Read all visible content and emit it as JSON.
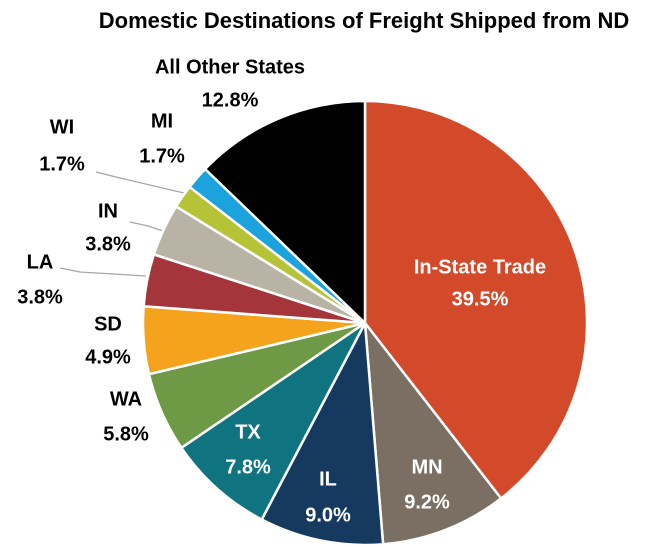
{
  "chart_data": {
    "type": "pie",
    "title": "Domestic Destinations of Freight Shipped from ND",
    "categories": [
      "In-State Trade",
      "MN",
      "IL",
      "TX",
      "WA",
      "SD",
      "LA",
      "IN",
      "WI",
      "MI",
      "All Other States"
    ],
    "values": [
      39.5,
      9.2,
      9.0,
      7.8,
      5.8,
      4.9,
      3.8,
      3.8,
      1.7,
      1.7,
      12.8
    ],
    "value_labels": [
      "39.5%",
      "9.2%",
      "9.0%",
      "7.8%",
      "5.8%",
      "4.9%",
      "3.8%",
      "3.8%",
      "1.7%",
      "1.7%",
      "12.8%"
    ],
    "colors": [
      "#d24a29",
      "#7b6f64",
      "#163a5f",
      "#0f7480",
      "#6f9a45",
      "#f5a21d",
      "#a3353b",
      "#b9b3a6",
      "#b6c337",
      "#1ca2dc",
      "#000000"
    ]
  }
}
